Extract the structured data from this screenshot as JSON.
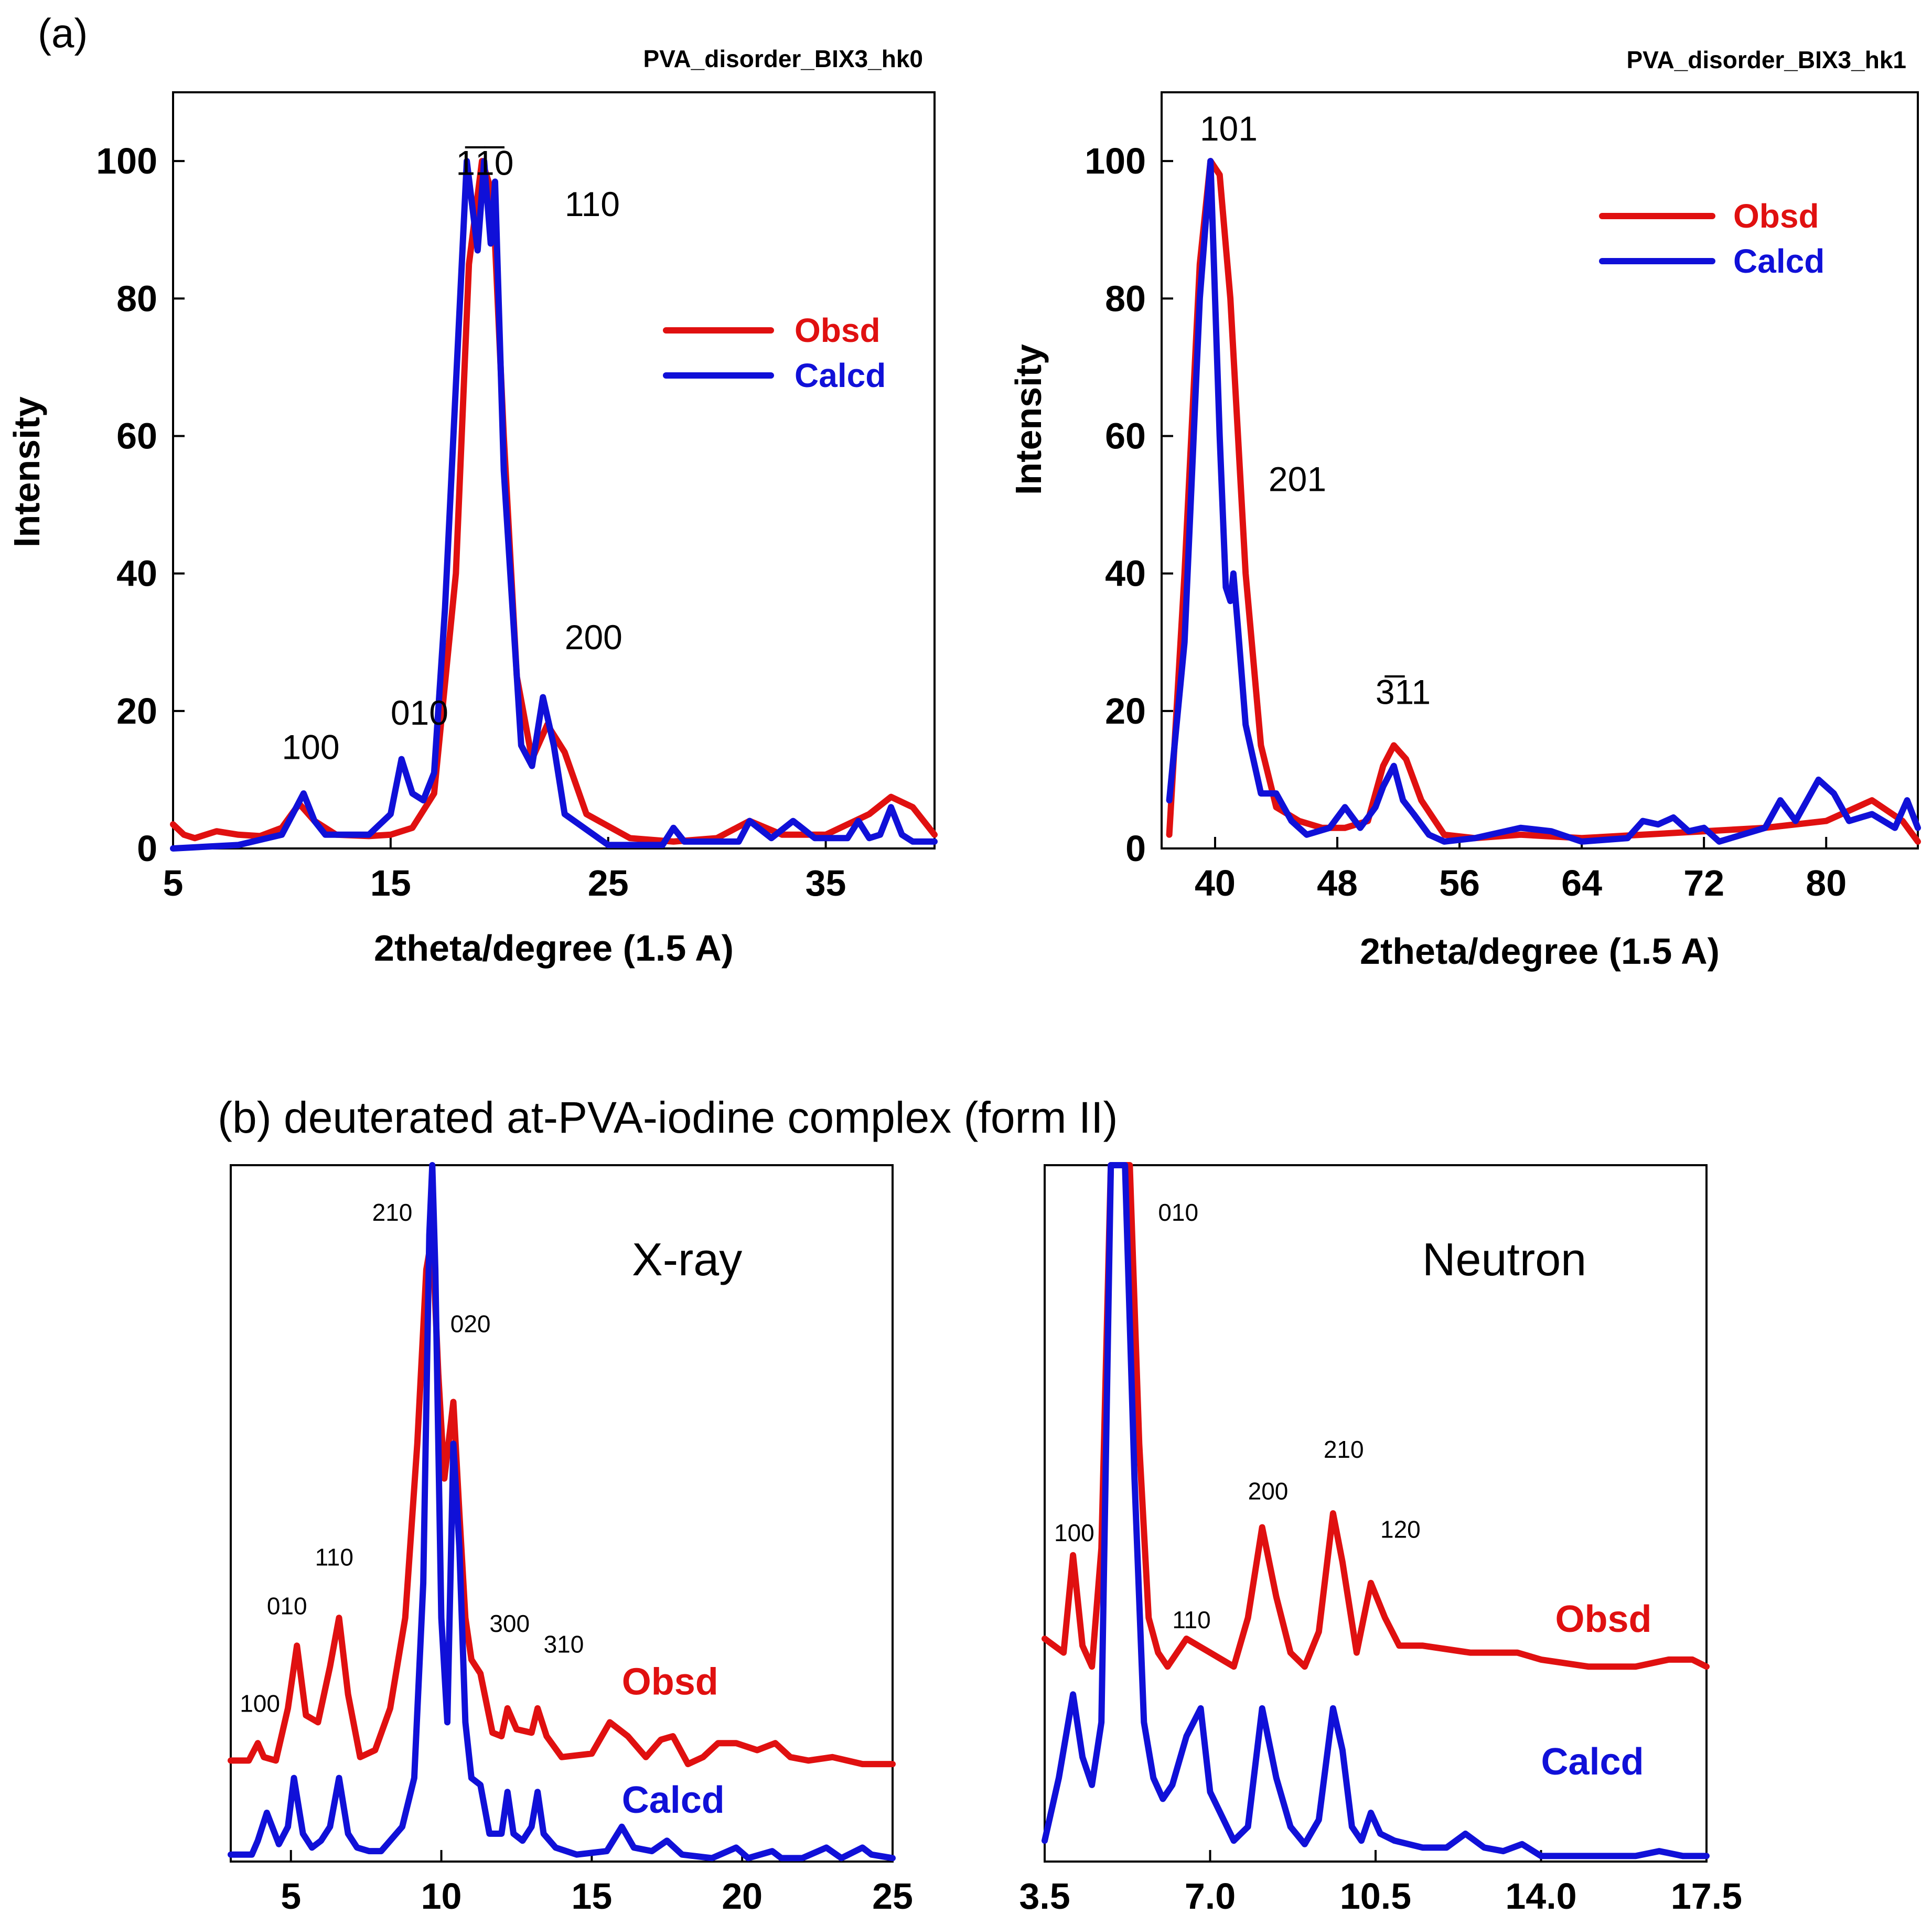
{
  "colors": {
    "obsd": "#e01010",
    "calcd": "#1010d8"
  },
  "figure_labels": {
    "a": "(a)",
    "b": "(b) deuterated at-PVA-iodine complex (form II)"
  },
  "chart_data": [
    {
      "id": "a1",
      "type": "line",
      "title": "PVA_disorder_BIX3_hk0",
      "xlabel": "2theta/degree (1.5 A)",
      "ylabel": "Intensity",
      "xlim": [
        5,
        40
      ],
      "ylim": [
        0,
        110
      ],
      "xticks": [
        5,
        15,
        25,
        35
      ],
      "xtick_labels": [
        "5",
        "15",
        "25",
        "35"
      ],
      "yticks": [
        0,
        20,
        40,
        60,
        80,
        100
      ],
      "ytick_labels": [
        "0",
        "20",
        "40",
        "60",
        "80",
        "100"
      ],
      "legend": {
        "position": "upper-right",
        "entries": [
          "Obsd",
          "Calcd"
        ]
      },
      "annotations": [
        {
          "text": "100",
          "x": 10,
          "y": 13
        },
        {
          "text": "010",
          "x": 15,
          "y": 18
        },
        {
          "text": "1̅1̅0",
          "x": 18,
          "y": 98
        },
        {
          "text": "110",
          "x": 23,
          "y": 92
        },
        {
          "text": "200",
          "x": 23,
          "y": 29
        }
      ],
      "series": [
        {
          "name": "Obsd",
          "x": [
            5,
            5.5,
            6,
            7,
            8,
            9,
            10,
            10.8,
            11.5,
            12.5,
            14,
            15,
            16,
            17,
            18,
            18.6,
            19.2,
            19.7,
            20.2,
            20.8,
            21.5,
            22.2,
            23,
            24,
            26,
            28,
            30,
            31.5,
            33,
            35,
            37,
            38,
            39,
            40
          ],
          "y": [
            3.5,
            2,
            1.5,
            2.5,
            2,
            1.8,
            3,
            6.5,
            4,
            2,
            1.8,
            2,
            3,
            8,
            40,
            85,
            100,
            95,
            60,
            25,
            13,
            18,
            14,
            5,
            1.5,
            1,
            1.5,
            4,
            2,
            2,
            5,
            7.5,
            6,
            2
          ]
        },
        {
          "name": "Calcd",
          "x": [
            5,
            8,
            10,
            10.5,
            11,
            11.5,
            12,
            14,
            15,
            15.5,
            16,
            16.5,
            17,
            17.5,
            18.5,
            19,
            19.3,
            19.6,
            19.8,
            20.2,
            21,
            21.5,
            22,
            22.5,
            23,
            25,
            27.5,
            28,
            28.5,
            31,
            31.5,
            32.5,
            33.5,
            34.5,
            36,
            36.5,
            37,
            37.5,
            38,
            38.5,
            39,
            40
          ],
          "y": [
            0,
            0.5,
            2,
            5,
            8,
            4,
            2,
            2,
            5,
            13,
            8,
            7,
            11,
            35,
            100,
            87,
            100,
            88,
            97,
            55,
            15,
            12,
            22,
            15,
            5,
            0.5,
            0.5,
            3,
            1,
            1,
            4,
            1.5,
            4,
            1.5,
            1.5,
            4,
            1.5,
            2,
            6,
            2,
            1,
            1
          ]
        }
      ]
    },
    {
      "id": "a2",
      "type": "line",
      "title": "PVA_disorder_BIX3_hk1",
      "xlabel": "2theta/degree (1.5 A)",
      "ylabel": "Intensity",
      "xlim": [
        36.5,
        86
      ],
      "ylim": [
        0,
        110
      ],
      "xticks": [
        40,
        48,
        56,
        64,
        72,
        80
      ],
      "xtick_labels": [
        "40",
        "48",
        "56",
        "64",
        "72",
        "80"
      ],
      "yticks": [
        0,
        20,
        40,
        60,
        80,
        100
      ],
      "ytick_labels": [
        "0",
        "20",
        "40",
        "60",
        "80",
        "100"
      ],
      "legend": {
        "position": "upper-right",
        "entries": [
          "Obsd",
          "Calcd"
        ]
      },
      "annotations": [
        {
          "text": "101",
          "x": 39,
          "y": 103
        },
        {
          "text": "201",
          "x": 43.5,
          "y": 52
        },
        {
          "text": "3̅11",
          "x": 50.5,
          "y": 21
        }
      ],
      "series": [
        {
          "name": "Obsd",
          "x": [
            37,
            38,
            39,
            39.7,
            40.3,
            41,
            42,
            43,
            44,
            45.5,
            47,
            48.5,
            50,
            51,
            51.7,
            52.5,
            53.5,
            55,
            57,
            60,
            64,
            68,
            72,
            76,
            80,
            83,
            85,
            86
          ],
          "y": [
            2,
            40,
            85,
            100,
            98,
            80,
            40,
            15,
            6,
            4,
            3,
            3,
            4,
            12,
            15,
            13,
            7,
            2,
            1.5,
            2,
            1.5,
            2,
            2.5,
            3,
            4,
            7,
            4,
            1
          ]
        },
        {
          "name": "Calcd",
          "x": [
            37,
            38,
            39,
            39.7,
            40.3,
            40.7,
            41,
            41.2,
            41.5,
            42,
            43,
            44,
            45,
            46,
            47.5,
            48.5,
            49.5,
            50.5,
            51,
            51.7,
            52.3,
            53,
            54,
            55,
            57,
            60,
            62,
            64,
            67,
            68,
            69,
            70,
            71,
            72,
            73,
            76,
            77,
            78,
            79.5,
            80.5,
            81.5,
            83,
            84.5,
            85.3,
            86
          ],
          "y": [
            7,
            30,
            80,
            100,
            60,
            38,
            36,
            40,
            32,
            18,
            8,
            8,
            4,
            2,
            3,
            6,
            3,
            6,
            9,
            12,
            7,
            5,
            2,
            1,
            1.5,
            3,
            2.5,
            1,
            1.5,
            4,
            3.5,
            4.5,
            2.5,
            3,
            1,
            3,
            7,
            4,
            10,
            8,
            4,
            5,
            3,
            7,
            3
          ]
        }
      ]
    },
    {
      "id": "b1",
      "type": "line",
      "title": "X-ray",
      "xlim": [
        3,
        25
      ],
      "ylim": [
        0,
        100
      ],
      "xticks": [
        5,
        10,
        15,
        20,
        25
      ],
      "xtick_labels": [
        "5",
        "10",
        "15",
        "20",
        "25"
      ],
      "annotations": [
        {
          "text": "100",
          "x": 3.3,
          "y": 21.5
        },
        {
          "text": "010",
          "x": 4.2,
          "y": 35.5
        },
        {
          "text": "110",
          "x": 5.8,
          "y": 42.5
        },
        {
          "text": "210",
          "x": 7.7,
          "y": 92
        },
        {
          "text": "020",
          "x": 10.3,
          "y": 76
        },
        {
          "text": "300",
          "x": 11.6,
          "y": 33
        },
        {
          "text": "310",
          "x": 13.4,
          "y": 30
        },
        {
          "text": "Obsd",
          "x": 16,
          "y": 24
        },
        {
          "text": "Calcd",
          "x": 16,
          "y": 7
        }
      ],
      "series": [
        {
          "name": "Obsd",
          "x": [
            3,
            3.6,
            3.9,
            4.1,
            4.5,
            4.9,
            5.2,
            5.5,
            5.9,
            6.3,
            6.6,
            6.9,
            7.3,
            7.8,
            8.3,
            8.8,
            9.2,
            9.5,
            9.7,
            9.9,
            10.1,
            10.4,
            10.6,
            10.8,
            11,
            11.3,
            11.7,
            12,
            12.2,
            12.5,
            13,
            13.2,
            13.5,
            14,
            15,
            15.6,
            16.2,
            16.8,
            17.3,
            17.7,
            18.2,
            18.7,
            19.2,
            19.8,
            20.5,
            21.1,
            21.6,
            22.2,
            23,
            24,
            25
          ],
          "y": [
            14.5,
            14.5,
            17,
            15,
            14.5,
            22,
            31,
            21,
            20,
            28,
            35,
            24,
            15,
            16,
            22,
            35,
            60,
            85,
            90,
            70,
            55,
            66,
            50,
            35,
            29,
            27,
            18.5,
            18,
            22,
            19,
            18.5,
            22,
            18,
            15,
            15.5,
            20,
            18,
            15,
            17.5,
            18,
            14,
            15,
            17,
            17,
            16,
            17,
            15,
            14.5,
            15,
            14,
            14
          ]
        },
        {
          "name": "Calcd",
          "x": [
            3,
            3.7,
            3.9,
            4.2,
            4.6,
            4.9,
            5.1,
            5.4,
            5.7,
            6,
            6.3,
            6.6,
            6.9,
            7.2,
            7.6,
            8,
            8.3,
            8.7,
            9.1,
            9.4,
            9.6,
            9.7,
            9.8,
            10,
            10.2,
            10.4,
            10.6,
            10.8,
            11,
            11.3,
            11.6,
            12,
            12.2,
            12.4,
            12.7,
            13,
            13.2,
            13.4,
            13.8,
            14.5,
            15.5,
            16,
            16.4,
            17,
            17.5,
            18,
            19,
            19.8,
            20.2,
            21,
            21.3,
            22,
            22.8,
            23.3,
            24,
            24.3,
            25
          ],
          "y": [
            1,
            1,
            3,
            7,
            2.5,
            5,
            12,
            4,
            2,
            3,
            5,
            12,
            4,
            2,
            1.5,
            1.5,
            3,
            5,
            12,
            40,
            90,
            100,
            85,
            35,
            20,
            60,
            45,
            20,
            12,
            11,
            4,
            4,
            10,
            4,
            3,
            5,
            10,
            4,
            2,
            1,
            1.5,
            5,
            2,
            1.5,
            3,
            1,
            0.5,
            2,
            0.5,
            1.5,
            0.5,
            0.5,
            2,
            0.5,
            2,
            1,
            0.5
          ]
        }
      ]
    },
    {
      "id": "b2",
      "type": "line",
      "title": "Neutron",
      "xlim": [
        3.5,
        17.5
      ],
      "ylim": [
        0,
        100
      ],
      "xticks": [
        3.5,
        7.0,
        10.5,
        14.0,
        17.5
      ],
      "xtick_labels": [
        "3.5",
        "7.0",
        "10.5",
        "14.0",
        "17.5"
      ],
      "annotations": [
        {
          "text": "100",
          "x": 3.7,
          "y": 46
        },
        {
          "text": "010",
          "x": 5.9,
          "y": 92
        },
        {
          "text": "110",
          "x": 6.2,
          "y": 33.5
        },
        {
          "text": "200",
          "x": 7.8,
          "y": 52
        },
        {
          "text": "210",
          "x": 9.4,
          "y": 58
        },
        {
          "text": "120",
          "x": 10.6,
          "y": 46.5
        },
        {
          "text": "Obsd",
          "x": 14.3,
          "y": 33
        },
        {
          "text": "Calcd",
          "x": 14.0,
          "y": 12.5
        }
      ],
      "series": [
        {
          "name": "Obsd",
          "x": [
            3.5,
            3.9,
            4.1,
            4.3,
            4.5,
            4.7,
            4.9,
            5.1,
            5.3,
            5.5,
            5.7,
            5.9,
            6.1,
            6.5,
            7,
            7.5,
            7.8,
            8.1,
            8.4,
            8.7,
            9,
            9.3,
            9.6,
            9.8,
            10.1,
            10.4,
            10.7,
            11,
            11.5,
            12.5,
            13.5,
            14,
            15,
            16,
            16.7,
            17.2,
            17.5
          ],
          "y": [
            32,
            30,
            44,
            31,
            28,
            45,
            100,
            100,
            100,
            60,
            35,
            30,
            28,
            32,
            30,
            28,
            35,
            48,
            38,
            30,
            28,
            33,
            50,
            43,
            30,
            40,
            35,
            31,
            31,
            30,
            30,
            29,
            28,
            28,
            29,
            29,
            28
          ]
        },
        {
          "name": "Calcd",
          "x": [
            3.5,
            3.8,
            4.1,
            4.3,
            4.5,
            4.7,
            4.9,
            5,
            5.2,
            5.4,
            5.6,
            5.8,
            6,
            6.2,
            6.5,
            6.8,
            7,
            7.5,
            7.8,
            8.1,
            8.4,
            8.7,
            9,
            9.3,
            9.6,
            9.8,
            10,
            10.2,
            10.4,
            10.6,
            10.9,
            11.5,
            12,
            12.4,
            12.8,
            13.2,
            13.6,
            14,
            15,
            16,
            16.5,
            17,
            17.5
          ],
          "y": [
            3,
            12,
            24,
            15,
            11,
            20,
            100,
            100,
            100,
            55,
            20,
            12,
            9,
            11,
            18,
            22,
            10,
            3,
            5,
            22,
            12,
            5,
            2.5,
            6,
            22,
            16,
            5,
            3,
            7,
            4,
            3,
            2,
            2,
            4,
            2,
            1.5,
            2.5,
            0.8,
            0.8,
            0.8,
            1.5,
            0.8,
            0.8
          ]
        }
      ]
    }
  ]
}
